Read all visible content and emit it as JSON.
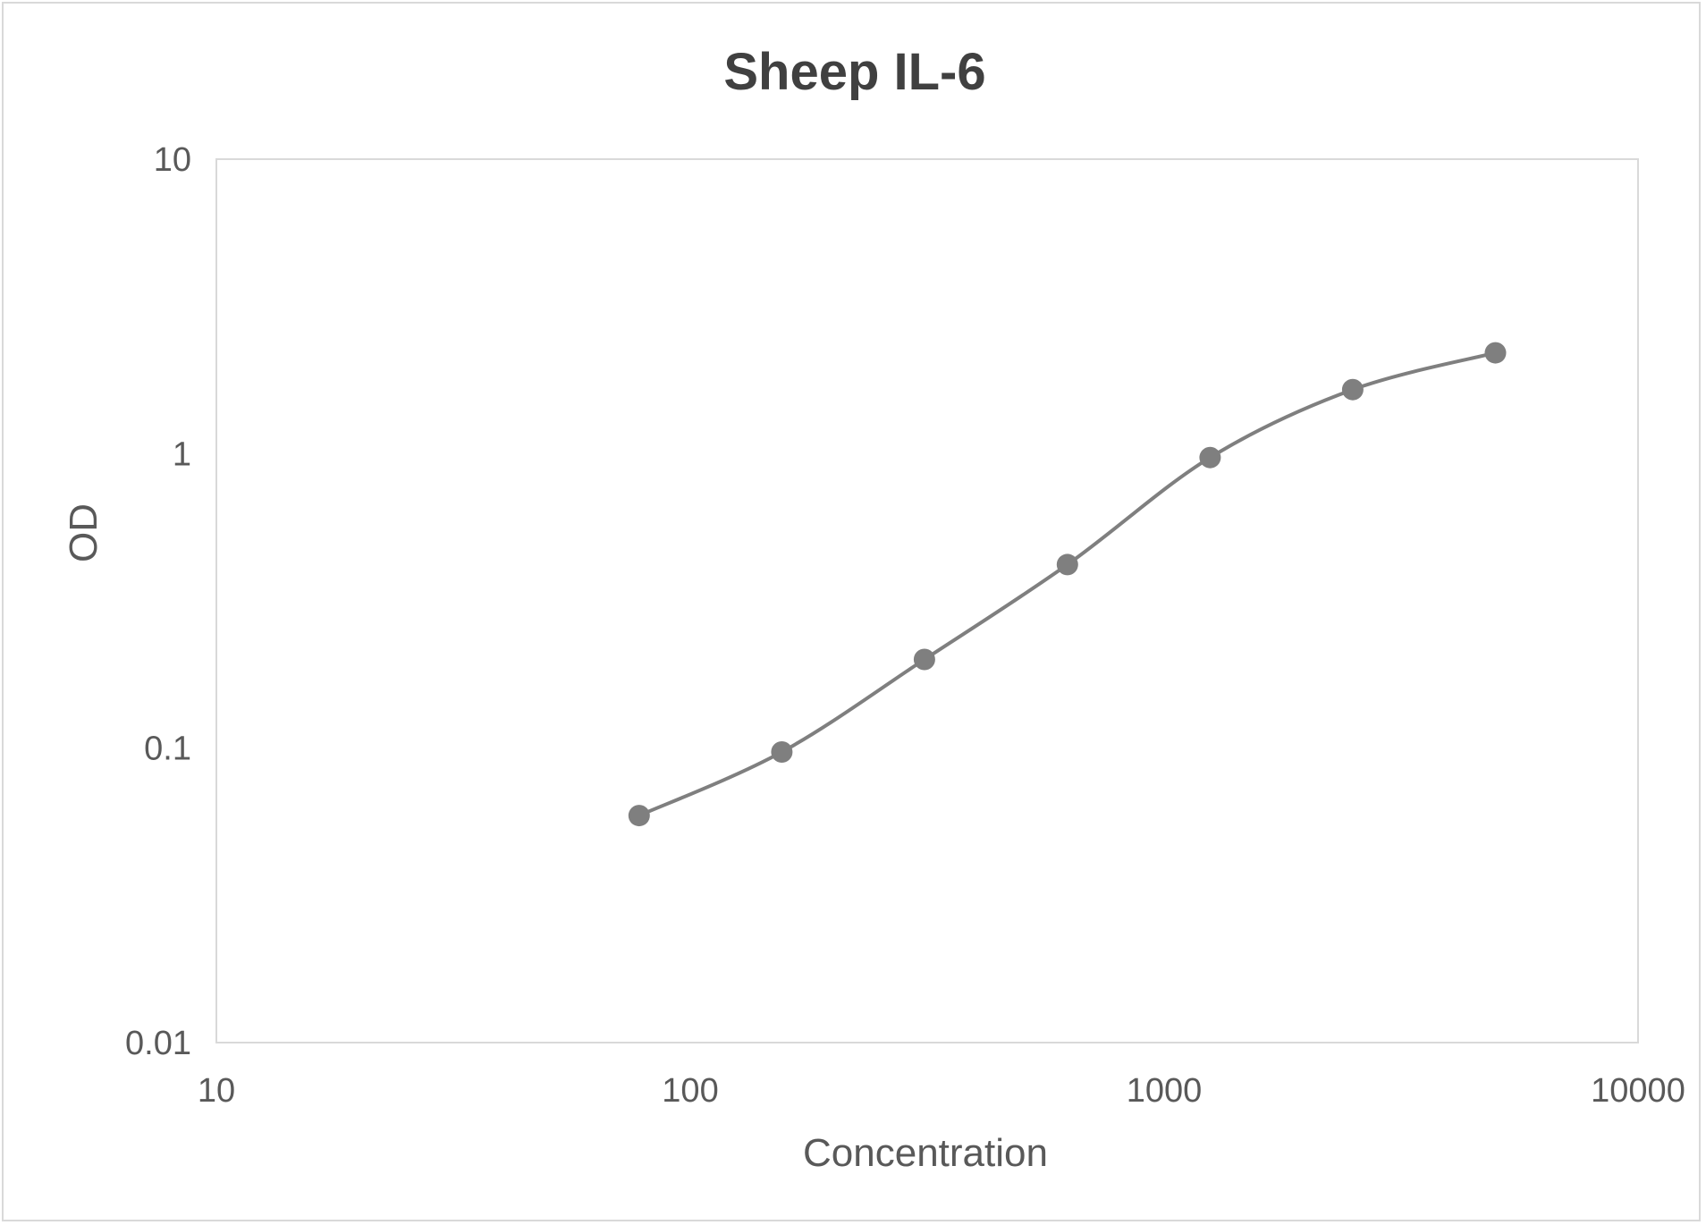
{
  "chart_data": {
    "type": "scatter",
    "title": "Sheep IL-6",
    "xlabel": "Concentration",
    "ylabel": "OD",
    "xscale": "log",
    "yscale": "log",
    "xlim": [
      10,
      10000
    ],
    "ylim": [
      0.01,
      10
    ],
    "xticks": [
      "10",
      "100",
      "1000",
      "10000"
    ],
    "yticks": [
      "0.01",
      "0.1",
      "1",
      "10"
    ],
    "grid": false,
    "legend": "none",
    "line": "smoothed",
    "colors": {
      "series": "#7f7f7f",
      "plot_border": "#d9d9d9",
      "text": "#595959",
      "title": "#404040"
    },
    "series": [
      {
        "x": [
          78,
          156,
          312,
          625,
          1250,
          2500,
          5000
        ],
        "y": [
          0.059,
          0.097,
          0.2,
          0.42,
          0.97,
          1.65,
          2.2
        ]
      }
    ]
  }
}
